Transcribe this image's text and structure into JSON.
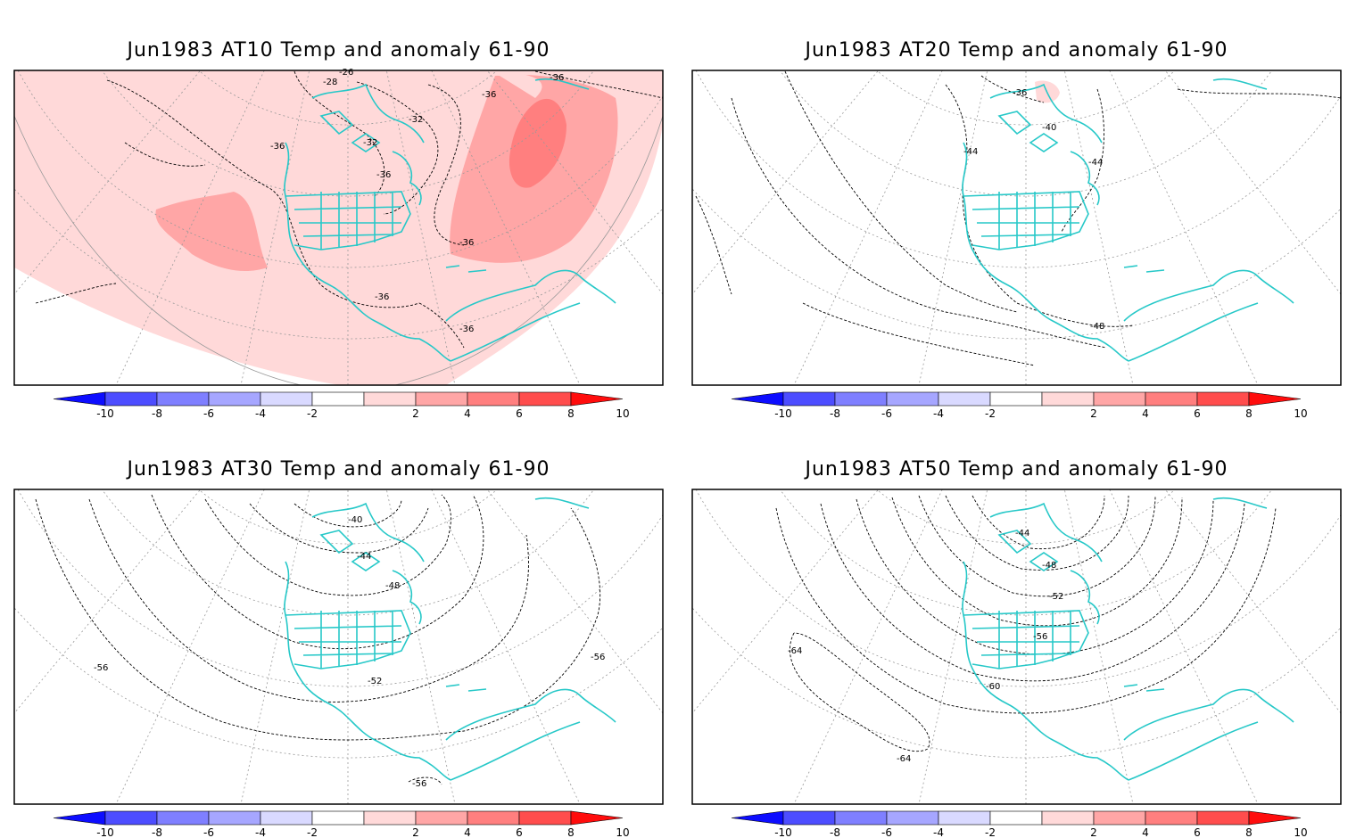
{
  "palette": {
    "neg": [
      "#0d0dff",
      "#4d4dff",
      "#7f7fff",
      "#a6a6ff",
      "#d9d9ff"
    ],
    "pos": [
      "#ffd9d9",
      "#ffa6a6",
      "#ff7f7f",
      "#ff4d4d",
      "#ff0d0d"
    ],
    "coast": "#26c8c8",
    "grid": "#999999"
  },
  "colorbar": {
    "ticks": [
      "-10",
      "-8",
      "-6",
      "-4",
      "-2",
      "2",
      "4",
      "6",
      "8",
      "10"
    ]
  },
  "panels": [
    {
      "title": "Jun1983 AT10 Temp and anomaly 61-90",
      "contour_labels": [
        "-28",
        "-26",
        "-32",
        "-32",
        "-36",
        "-36",
        "-36",
        "-36",
        "-36",
        "-36",
        "-36"
      ]
    },
    {
      "title": "Jun1983 AT20 Temp and anomaly 61-90",
      "contour_labels": [
        "-36",
        "-40",
        "-44",
        "-44",
        "-48"
      ]
    },
    {
      "title": "Jun1983 AT30 Temp and anomaly 61-90",
      "contour_labels": [
        "-40",
        "-44",
        "-48",
        "-52",
        "-56",
        "-56",
        "-56"
      ]
    },
    {
      "title": "Jun1983 AT50 Temp and anomaly 61-90",
      "contour_labels": [
        "-44",
        "-48",
        "-52",
        "-56",
        "-60",
        "-64",
        "-64"
      ]
    }
  ]
}
